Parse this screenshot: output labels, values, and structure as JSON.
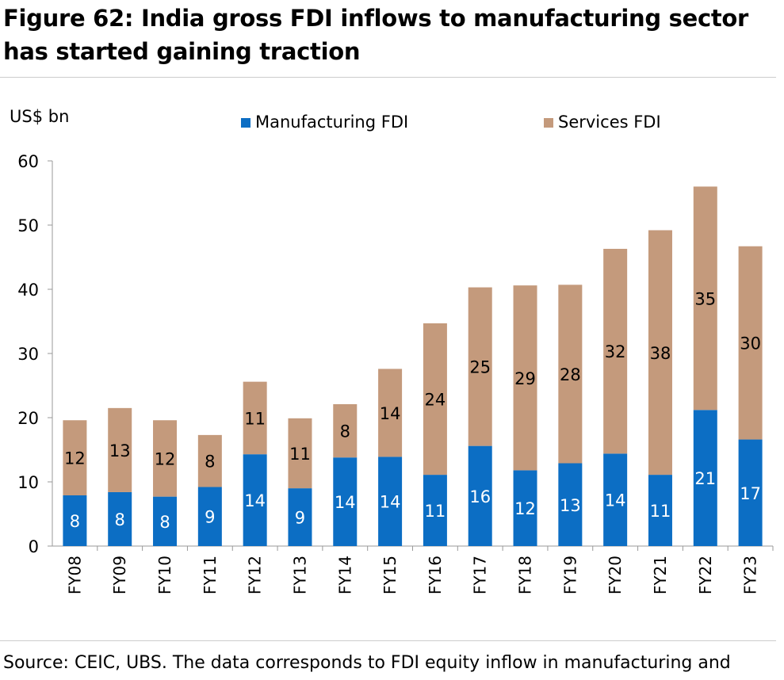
{
  "title": "Figure 62: India gross FDI inflows to manufacturing sector has started gaining traction",
  "source": "Source: CEIC, UBS. The data corresponds to FDI equity inflow in manufacturing and",
  "colors": {
    "manufacturing": "#0c6ec4",
    "services": "#c49a7c"
  },
  "chart_data": {
    "type": "bar",
    "stacked": true,
    "ylabel": "US$ bn",
    "ylim": [
      0,
      60
    ],
    "yticks": [
      0,
      10,
      20,
      30,
      40,
      50,
      60
    ],
    "legend_position": "top",
    "categories": [
      "FY08",
      "FY09",
      "FY10",
      "FY11",
      "FY12",
      "FY13",
      "FY14",
      "FY15",
      "FY16",
      "FY17",
      "FY18",
      "FY19",
      "FY20",
      "FY21",
      "FY22",
      "FY23"
    ],
    "series": [
      {
        "name": "Manufacturing FDI",
        "values": [
          7.9,
          8.4,
          7.7,
          9.2,
          14.3,
          9.0,
          13.8,
          13.9,
          11.1,
          15.6,
          11.8,
          12.9,
          14.4,
          11.1,
          21.2,
          16.6
        ],
        "labels": [
          "8",
          "8",
          "8",
          "9",
          "14",
          "9",
          "14",
          "14",
          "11",
          "16",
          "12",
          "13",
          "14",
          "11",
          "21",
          "17"
        ]
      },
      {
        "name": "Services FDI",
        "values": [
          11.7,
          13.1,
          11.9,
          8.1,
          11.3,
          10.9,
          8.3,
          13.7,
          23.6,
          24.7,
          28.8,
          27.8,
          31.9,
          38.1,
          34.8,
          30.1
        ],
        "labels": [
          "12",
          "13",
          "12",
          "8",
          "11",
          "11",
          "8",
          "14",
          "24",
          "25",
          "29",
          "28",
          "32",
          "38",
          "35",
          "30"
        ]
      }
    ]
  }
}
